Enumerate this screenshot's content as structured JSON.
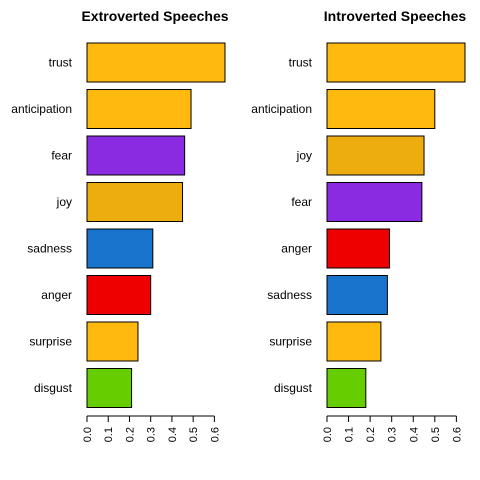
{
  "chart_data": [
    {
      "type": "bar",
      "orientation": "horizontal",
      "title": "Extroverted Speeches",
      "categories": [
        "trust",
        "anticipation",
        "fear",
        "joy",
        "sadness",
        "anger",
        "surprise",
        "disgust"
      ],
      "values": [
        0.65,
        0.49,
        0.46,
        0.45,
        0.31,
        0.3,
        0.24,
        0.21
      ],
      "colors": [
        "#FFB90F",
        "#FFB90F",
        "#8A2BE2",
        "#EEAD0E",
        "#1874CD",
        "#EE0000",
        "#FFB90F",
        "#66CD00"
      ],
      "xlim": [
        0,
        0.65
      ],
      "xticks": [
        "0.0",
        "0.1",
        "0.2",
        "0.3",
        "0.4",
        "0.5",
        "0.6"
      ],
      "xlabel": "",
      "ylabel": ""
    },
    {
      "type": "bar",
      "orientation": "horizontal",
      "title": "Introverted Speeches",
      "categories": [
        "trust",
        "anticipation",
        "joy",
        "fear",
        "anger",
        "sadness",
        "surprise",
        "disgust"
      ],
      "values": [
        0.64,
        0.5,
        0.45,
        0.44,
        0.29,
        0.28,
        0.25,
        0.18
      ],
      "colors": [
        "#FFB90F",
        "#FFB90F",
        "#EEAD0E",
        "#8A2BE2",
        "#EE0000",
        "#1874CD",
        "#FFB90F",
        "#66CD00"
      ],
      "xlim": [
        0,
        0.64
      ],
      "xticks": [
        "0.0",
        "0.1",
        "0.2",
        "0.3",
        "0.4",
        "0.5",
        "0.6"
      ],
      "xlabel": "",
      "ylabel": ""
    }
  ]
}
